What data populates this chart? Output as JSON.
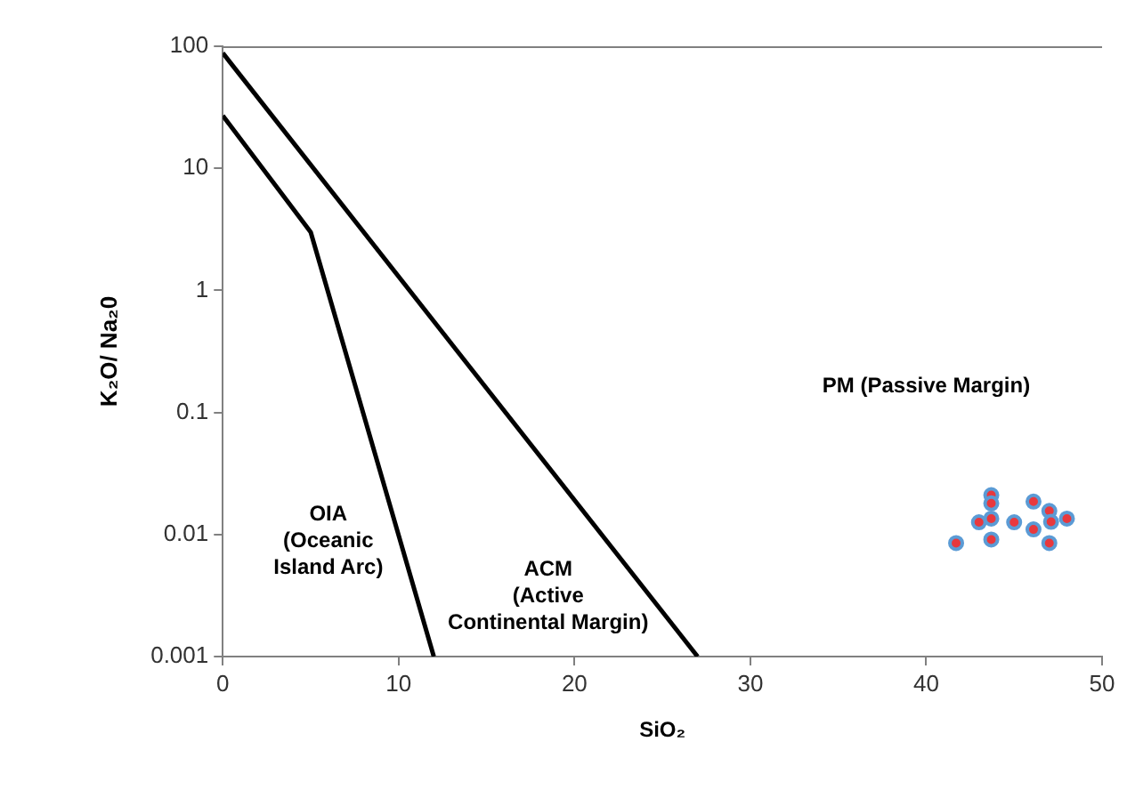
{
  "chart_data": {
    "type": "scatter",
    "xlabel": "SiO₂",
    "ylabel": "K₂O/ Na₂0",
    "log": "y",
    "xlim": [
      0,
      50
    ],
    "xticks": [
      0,
      10,
      20,
      30,
      40,
      50
    ],
    "ylim": [
      0.001,
      100
    ],
    "yticks": [
      0.001,
      0.01,
      0.1,
      1,
      10,
      100
    ],
    "grid": false,
    "legend": false,
    "marker": "circle",
    "annotations": [
      "OIA\n(Oceanic\nIsland Arc)",
      "ACM\n(Active\nContinental Margin)",
      "PM (Passive Margin)"
    ],
    "series": [
      {
        "type": "line",
        "marker": "none",
        "color": "#000000",
        "x": [
          0,
          27
        ],
        "values": [
          88,
          0.001
        ]
      },
      {
        "type": "line",
        "marker": "none",
        "color": "#000000",
        "x": [
          0,
          5,
          12
        ],
        "values": [
          27,
          3,
          0.001
        ]
      },
      {
        "color": "#e8383d",
        "x": [
          41.7,
          43.0,
          43.7,
          43.7,
          43.7,
          43.7,
          45.0,
          46.1,
          46.1,
          47.0,
          47.1,
          47.0,
          48.0
        ],
        "values": [
          0.0085,
          0.0126,
          0.021,
          0.018,
          0.0135,
          0.0091,
          0.0126,
          0.0186,
          0.011,
          0.0156,
          0.0127,
          0.0085,
          0.0135
        ]
      }
    ]
  }
}
